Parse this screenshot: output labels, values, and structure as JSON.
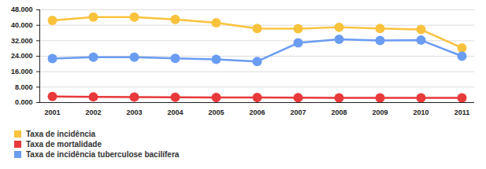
{
  "chart_data": {
    "type": "line",
    "categories": [
      "2001",
      "2002",
      "2003",
      "2004",
      "2005",
      "2006",
      "2007",
      "2008",
      "2009",
      "2010",
      "2011"
    ],
    "series": [
      {
        "name": "Taxa de incidência",
        "color": "#f9c23c",
        "marker": "circle",
        "values": [
          42.5,
          44.2,
          44.2,
          43.0,
          41.3,
          38.3,
          38.2,
          39.0,
          38.3,
          37.8,
          28.3
        ]
      },
      {
        "name": "Taxa de mortalidade",
        "color": "#e8393b",
        "marker": "circle",
        "values": [
          3.2,
          2.9,
          2.8,
          2.7,
          2.6,
          2.6,
          2.5,
          2.4,
          2.4,
          2.4,
          2.4
        ]
      },
      {
        "name": "Taxa de incidência tuberculose bacilífera",
        "color": "#6a9cf2",
        "marker": "circle",
        "values": [
          22.8,
          23.5,
          23.5,
          22.9,
          22.4,
          21.3,
          30.9,
          32.7,
          32.1,
          32.3,
          24.0
        ]
      }
    ],
    "ylim": [
      0,
      48
    ],
    "yticks": [
      {
        "value": 0,
        "label": "0.000"
      },
      {
        "value": 8,
        "label": "8.000"
      },
      {
        "value": 16,
        "label": "16.000"
      },
      {
        "value": 24,
        "label": "24.000"
      },
      {
        "value": 32,
        "label": "32.000"
      },
      {
        "value": 40,
        "label": "40.000"
      },
      {
        "value": 48,
        "label": "48.000"
      }
    ],
    "grid": true,
    "legend": "bottom-left"
  }
}
